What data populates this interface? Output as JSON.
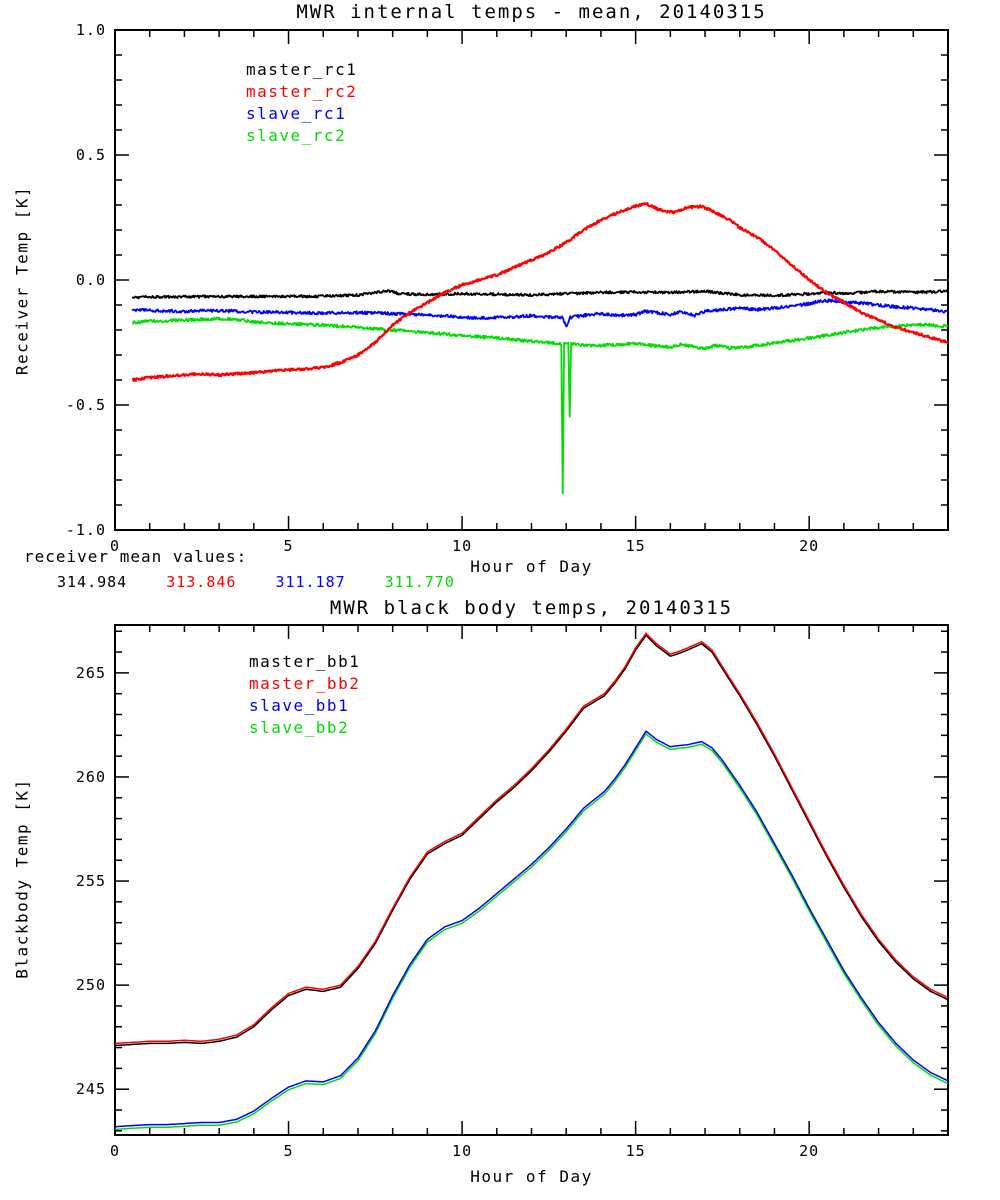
{
  "page": {
    "background": "#ffffff",
    "foreground": "#000000"
  },
  "receiver_mean": {
    "label": "receiver mean values:",
    "values": [
      {
        "text": "314.984",
        "color": "#000000"
      },
      {
        "text": "313.846",
        "color": "#ff0000"
      },
      {
        "text": "311.187",
        "color": "#0000ff"
      },
      {
        "text": "311.770",
        "color": "#00dd00"
      }
    ]
  },
  "chart_data": [
    {
      "id": "receiver-temps",
      "type": "line",
      "title": "MWR internal temps - mean, 20140315",
      "xlabel": "Hour of Day",
      "ylabel": "Receiver Temp [K]",
      "xlim": [
        0,
        24
      ],
      "ylim": [
        -1.0,
        1.0
      ],
      "xticks": [
        0,
        5,
        10,
        15,
        20
      ],
      "xtick_labels": [
        "0",
        "5",
        "10",
        "15",
        "20"
      ],
      "xtick_minor": 1,
      "yticks": [
        -1.0,
        -0.5,
        0.0,
        0.5,
        1.0
      ],
      "ytick_labels": [
        "-1.0",
        "-0.5",
        "0.0",
        "0.5",
        "1.0"
      ],
      "ytick_minor": 0.1,
      "grid": false,
      "legend_position": "upper-left-inside",
      "legend": [
        {
          "label": "master_rc1",
          "color": "#000000"
        },
        {
          "label": "master_rc2",
          "color": "#ff0000"
        },
        {
          "label": "slave_rc1",
          "color": "#0000ff"
        },
        {
          "label": "slave_rc2",
          "color": "#00dd00"
        }
      ],
      "series": [
        {
          "name": "master_rc1",
          "color": "#000000",
          "width": 1.8,
          "noise": 0.005,
          "x": [
            0.5,
            1,
            2,
            3,
            4,
            5,
            6,
            7,
            7.6,
            7.9,
            8.2,
            9,
            10,
            11,
            12,
            13,
            14,
            15,
            16,
            17,
            18,
            19,
            20,
            20.6,
            21,
            22,
            23,
            23.5,
            24
          ],
          "y": [
            -0.07,
            -0.068,
            -0.067,
            -0.066,
            -0.066,
            -0.065,
            -0.065,
            -0.06,
            -0.048,
            -0.045,
            -0.055,
            -0.058,
            -0.055,
            -0.057,
            -0.06,
            -0.055,
            -0.05,
            -0.048,
            -0.05,
            -0.045,
            -0.06,
            -0.062,
            -0.055,
            -0.05,
            -0.055,
            -0.045,
            -0.05,
            -0.048,
            -0.045
          ]
        },
        {
          "name": "slave_rc1",
          "color": "#0000ff",
          "width": 1.8,
          "noise": 0.006,
          "x": [
            0.5,
            1,
            2,
            3,
            4,
            5,
            6,
            7,
            8,
            9,
            10,
            10.5,
            11,
            11.5,
            12,
            12.5,
            12.9,
            13,
            13.1,
            13.5,
            14,
            14.5,
            15,
            15.3,
            15.6,
            16,
            16.3,
            16.7,
            17,
            17.5,
            18,
            18.5,
            19,
            19.5,
            20,
            20.3,
            20.7,
            21,
            21.5,
            22,
            22.5,
            23,
            23.5,
            24
          ],
          "y": [
            -0.12,
            -0.122,
            -0.125,
            -0.122,
            -0.128,
            -0.13,
            -0.132,
            -0.13,
            -0.135,
            -0.14,
            -0.148,
            -0.152,
            -0.15,
            -0.148,
            -0.142,
            -0.148,
            -0.15,
            -0.19,
            -0.15,
            -0.142,
            -0.135,
            -0.142,
            -0.138,
            -0.125,
            -0.13,
            -0.138,
            -0.128,
            -0.142,
            -0.125,
            -0.118,
            -0.112,
            -0.118,
            -0.112,
            -0.105,
            -0.095,
            -0.085,
            -0.082,
            -0.088,
            -0.092,
            -0.1,
            -0.108,
            -0.112,
            -0.118,
            -0.128
          ]
        },
        {
          "name": "slave_rc2",
          "color": "#00dd00",
          "width": 1.8,
          "noise": 0.006,
          "x": [
            0.5,
            1,
            2,
            3,
            3.5,
            4,
            5,
            6,
            7,
            8,
            9,
            10,
            11,
            12,
            12.5,
            12.86,
            12.9,
            12.94,
            13.06,
            13.1,
            13.14,
            13.5,
            14,
            14.5,
            15,
            15.5,
            16,
            16.3,
            16.6,
            17,
            17.3,
            17.7,
            18,
            18.5,
            19,
            19.5,
            20,
            20.5,
            21,
            21.5,
            22,
            22.5,
            23,
            23.5,
            24
          ],
          "y": [
            -0.17,
            -0.165,
            -0.16,
            -0.155,
            -0.158,
            -0.168,
            -0.175,
            -0.18,
            -0.19,
            -0.2,
            -0.21,
            -0.222,
            -0.232,
            -0.245,
            -0.25,
            -0.255,
            -0.85,
            -0.255,
            -0.255,
            -0.55,
            -0.255,
            -0.26,
            -0.262,
            -0.258,
            -0.255,
            -0.262,
            -0.27,
            -0.258,
            -0.265,
            -0.275,
            -0.262,
            -0.272,
            -0.27,
            -0.262,
            -0.252,
            -0.242,
            -0.232,
            -0.222,
            -0.21,
            -0.2,
            -0.19,
            -0.185,
            -0.18,
            -0.18,
            -0.185
          ]
        },
        {
          "name": "master_rc2",
          "color": "#ff0000",
          "width": 2.2,
          "noise": 0.005,
          "x": [
            0.5,
            1,
            1.5,
            2,
            2.5,
            3,
            3.5,
            4,
            4.5,
            5,
            5.5,
            6,
            6.5,
            7,
            7.5,
            8,
            8.5,
            9,
            9.5,
            10,
            10.5,
            11,
            11.5,
            12,
            12.5,
            13,
            13.5,
            14,
            14.5,
            15,
            15.3,
            15.7,
            16.1,
            16.5,
            16.9,
            17.3,
            17.7,
            18,
            18.5,
            19,
            19.5,
            20,
            20.5,
            21,
            21.5,
            22,
            22.5,
            23,
            23.5,
            24
          ],
          "y": [
            -0.4,
            -0.39,
            -0.385,
            -0.38,
            -0.375,
            -0.38,
            -0.375,
            -0.37,
            -0.365,
            -0.36,
            -0.355,
            -0.35,
            -0.33,
            -0.3,
            -0.25,
            -0.18,
            -0.13,
            -0.09,
            -0.05,
            -0.02,
            0.0,
            0.02,
            0.05,
            0.08,
            0.11,
            0.15,
            0.2,
            0.24,
            0.27,
            0.295,
            0.305,
            0.28,
            0.27,
            0.29,
            0.295,
            0.27,
            0.24,
            0.21,
            0.17,
            0.12,
            0.06,
            0.0,
            -0.05,
            -0.09,
            -0.13,
            -0.16,
            -0.19,
            -0.21,
            -0.23,
            -0.25
          ]
        }
      ]
    },
    {
      "id": "blackbody-temps",
      "type": "line",
      "title": "MWR black body temps, 20140315",
      "xlabel": "Hour of Day",
      "ylabel": "Blackbody Temp [K]",
      "xlim": [
        0,
        24
      ],
      "ylim": [
        242.8,
        267.3
      ],
      "xticks": [
        0,
        5,
        10,
        15,
        20
      ],
      "xtick_labels": [
        "0",
        "5",
        "10",
        "15",
        "20"
      ],
      "xtick_minor": 1,
      "yticks": [
        245,
        250,
        255,
        260,
        265
      ],
      "ytick_labels": [
        "245",
        "250",
        "255",
        "260",
        "265"
      ],
      "ytick_minor": 1,
      "grid": false,
      "legend_position": "upper-left-inside",
      "legend": [
        {
          "label": "master_bb1",
          "color": "#000000"
        },
        {
          "label": "master_bb2",
          "color": "#ff0000"
        },
        {
          "label": "slave_bb1",
          "color": "#0000ff"
        },
        {
          "label": "slave_bb2",
          "color": "#00dd00"
        }
      ],
      "series": [
        {
          "name": "master_bb1",
          "color": "#000000",
          "width": 1.5,
          "noise": 0,
          "x": [
            0,
            0.5,
            1,
            1.5,
            2,
            2.5,
            3,
            3.5,
            4,
            4.5,
            5,
            5.5,
            6,
            6.5,
            7,
            7.5,
            8,
            8.5,
            9,
            9.5,
            10,
            10.5,
            11,
            11.5,
            12,
            12.5,
            13,
            13.5,
            13.8,
            14.1,
            14.4,
            14.7,
            15,
            15.3,
            15.6,
            16,
            16.2,
            16.5,
            16.9,
            17.2,
            17.5,
            18,
            18.5,
            19,
            19.5,
            20,
            20.5,
            21,
            21.5,
            22,
            22.5,
            23,
            23.5,
            24
          ],
          "y": [
            247.1,
            247.15,
            247.2,
            247.2,
            247.25,
            247.2,
            247.3,
            247.5,
            248.0,
            248.8,
            249.5,
            249.8,
            249.7,
            249.9,
            250.8,
            252.0,
            253.6,
            255.1,
            256.3,
            256.8,
            257.2,
            258.0,
            258.8,
            259.5,
            260.3,
            261.2,
            262.2,
            263.3,
            263.6,
            263.9,
            264.5,
            265.2,
            266.1,
            266.8,
            266.3,
            265.8,
            265.9,
            266.1,
            266.4,
            266.0,
            265.2,
            263.9,
            262.5,
            261.0,
            259.4,
            257.8,
            256.2,
            254.7,
            253.3,
            252.1,
            251.1,
            250.3,
            249.7,
            249.3
          ]
        },
        {
          "name": "master_bb2",
          "color": "#ff0000",
          "width": 1.5,
          "noise": 0,
          "ref": "master_bb1",
          "offset": 0.1
        },
        {
          "name": "slave_bb2",
          "color": "#00dd00",
          "width": 1.5,
          "noise": 0,
          "ref": "slave_bb1",
          "offset": -0.13
        },
        {
          "name": "slave_bb1",
          "color": "#0000ff",
          "width": 1.5,
          "noise": 0,
          "x": [
            0,
            0.5,
            1,
            1.5,
            2,
            2.5,
            3,
            3.5,
            4,
            4.5,
            5,
            5.5,
            6,
            6.5,
            7,
            7.5,
            8,
            8.5,
            9,
            9.5,
            10,
            10.5,
            11,
            11.5,
            12,
            12.5,
            13,
            13.5,
            13.8,
            14.1,
            14.4,
            14.7,
            15,
            15.3,
            15.6,
            16,
            16.2,
            16.5,
            16.9,
            17.2,
            17.5,
            18,
            18.5,
            19,
            19.5,
            20,
            20.5,
            21,
            21.5,
            22,
            22.5,
            23,
            23.5,
            24
          ],
          "y": [
            243.2,
            243.25,
            243.3,
            243.3,
            243.35,
            243.4,
            243.4,
            243.55,
            243.95,
            244.55,
            245.1,
            245.4,
            245.35,
            245.65,
            246.5,
            247.8,
            249.5,
            251.0,
            252.2,
            252.8,
            253.1,
            253.7,
            254.4,
            255.1,
            255.8,
            256.6,
            257.5,
            258.5,
            258.9,
            259.3,
            259.9,
            260.6,
            261.4,
            262.2,
            261.8,
            261.45,
            261.5,
            261.55,
            261.7,
            261.4,
            260.8,
            259.6,
            258.3,
            256.8,
            255.3,
            253.7,
            252.2,
            250.7,
            249.4,
            248.2,
            247.2,
            246.4,
            245.8,
            245.4
          ]
        }
      ]
    }
  ]
}
